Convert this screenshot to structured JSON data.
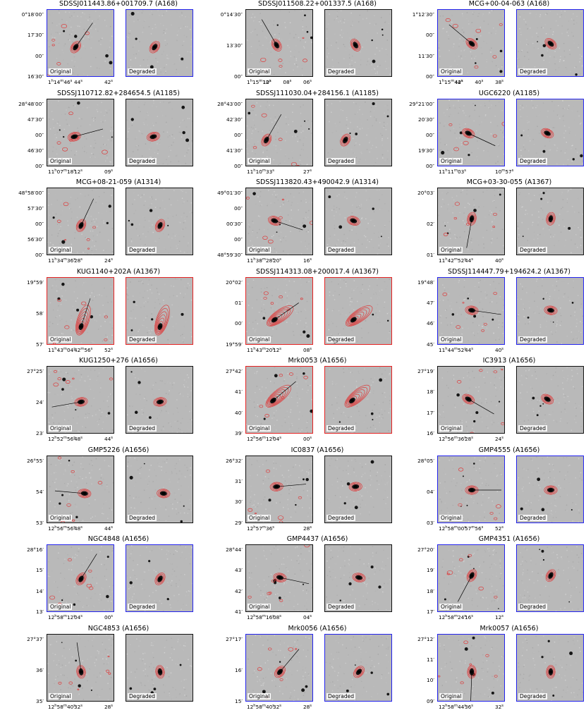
{
  "panel_labels": {
    "original": "Original",
    "degraded": "Degraded"
  },
  "galaxies": [
    {
      "name": "SDSSJ011443.86+001709.7 (A168)",
      "frame": "blue",
      "yticks": [
        "0°18′00″",
        "17′30″",
        "00″",
        "16′30″"
      ],
      "xticks": [
        "1h14m46s",
        "44s",
        "42s"
      ],
      "tail": "ne",
      "angle": -55,
      "ctr": [
        0.42,
        0.55
      ],
      "ox": 1,
      "deg": "same"
    },
    {
      "name": "SDSSJ011508.22+001337.5 (A168)",
      "frame": "black",
      "yticks": [
        "0°14′30″",
        "13′30″",
        "00″"
      ],
      "xticks": [
        "1h15m12s",
        "10s",
        "08s",
        "06s"
      ],
      "tail": "nw",
      "angle": -120,
      "ctr": [
        0.45,
        0.52
      ],
      "ox": 0,
      "deg": "same"
    },
    {
      "name": "MCG+00-04-063 (A168)",
      "frame": "blue",
      "yticks": [
        "1°12′30″",
        "00″",
        "11′30″",
        "00″"
      ],
      "xticks": [
        "1h15m44s",
        "42s",
        "40s",
        "38s"
      ],
      "tail": "nw",
      "angle": -140,
      "ctr": [
        0.5,
        0.5
      ],
      "ox": 2,
      "deg": "same"
    },
    {
      "name": "SDSSJ110712.82+284654.5 (A1185)",
      "frame": "black",
      "yticks": [
        "28°48′00″",
        "47′30″",
        "00″",
        "46′30″",
        "00″"
      ],
      "xticks": [
        "11h07m18s",
        "12s",
        "09s"
      ],
      "tail": "e",
      "angle": -15,
      "ctr": [
        0.4,
        0.55
      ],
      "ox": 0,
      "deg": "same"
    },
    {
      "name": "SDSSJ111030.04+284156.1 (A1185)",
      "frame": "black",
      "yticks": [
        "28°43′00″",
        "42′30″",
        "00″",
        "41′30″",
        "00″"
      ],
      "xticks": [
        "11h10m33s",
        "27s"
      ],
      "tail": "ne",
      "angle": -60,
      "ctr": [
        0.3,
        0.6
      ],
      "ox": 1,
      "deg": "same"
    },
    {
      "name": "UGC6220 (A1185)",
      "frame": "blue",
      "yticks": [
        "29°21′00″",
        "20′30″",
        "00″",
        "19′30″",
        "00″"
      ],
      "xticks": [
        "11h11m03s",
        "10m57s"
      ],
      "tail": "se",
      "angle": 25,
      "ctr": [
        0.45,
        0.5
      ],
      "ox": 2,
      "deg": "same"
    },
    {
      "name": "MCG+08-21-059 (A1314)",
      "frame": "black",
      "yticks": [
        "48°58′00″",
        "57′30″",
        "00″",
        "56′30″",
        "00″"
      ],
      "xticks": [
        "11h34m36s",
        "28s",
        "24s"
      ],
      "tail": "ne",
      "angle": -65,
      "ctr": [
        0.5,
        0.55
      ],
      "ox": 0,
      "deg": "same"
    },
    {
      "name": "SDSSJ113820.43+490042.9 (A1314)",
      "frame": "black",
      "yticks": [
        "49°01′30″",
        "00″",
        "00′30″",
        "00″",
        "48°59′30″"
      ],
      "xticks": [
        "11h38m28s",
        "20s",
        "16s"
      ],
      "tail": "se",
      "angle": 18,
      "ctr": [
        0.42,
        0.48
      ],
      "ox": 1,
      "deg": "same"
    },
    {
      "name": "MCG+03-30-055 (A1367)",
      "frame": "black",
      "yticks": [
        "20°03′",
        "02′",
        "01′"
      ],
      "xticks": [
        "11h42m52s",
        "44s",
        "40s"
      ],
      "tail": "s",
      "angle": 100,
      "ctr": [
        0.5,
        0.45
      ],
      "ox": 2,
      "deg": "same"
    },
    {
      "name": "KUG1140+202A (A1367)",
      "frame": "red",
      "yticks": [
        "19°59′",
        "58′",
        "57′"
      ],
      "xticks": [
        "11h43m04s",
        "42m56s",
        "52s"
      ],
      "tail": "ne",
      "angle": -72,
      "ctr": [
        0.5,
        0.72
      ],
      "ox": 0,
      "deg": "long"
    },
    {
      "name": "SDSSJ114313.08+200017.4 (A1367)",
      "frame": "red",
      "yticks": [
        "20°02′",
        "01′",
        "00′",
        "19°59′"
      ],
      "xticks": [
        "11h43m20s",
        "12s",
        "08s"
      ],
      "tail": "ne",
      "angle": -35,
      "ctr": [
        0.42,
        0.62
      ],
      "ox": 1,
      "deg": "long"
    },
    {
      "name": "SDSSJ114447.79+194624.2 (A1367)",
      "frame": "blue",
      "yticks": [
        "19°48′",
        "47′",
        "46′",
        "45′"
      ],
      "xticks": [
        "11h44m52s",
        "44s",
        "40s"
      ],
      "tail": "e",
      "angle": 8,
      "ctr": [
        0.5,
        0.48
      ],
      "ox": 2,
      "deg": "same"
    },
    {
      "name": "KUG1250+276 (A1656)",
      "frame": "black",
      "yticks": [
        "27°25′",
        "24′",
        "23′"
      ],
      "xticks": [
        "12h52m56s",
        "48s",
        "44s"
      ],
      "tail": "w",
      "angle": -190,
      "ctr": [
        0.5,
        0.52
      ],
      "ox": 0,
      "deg": "same"
    },
    {
      "name": "Mrk0053 (A1656)",
      "frame": "red",
      "yticks": [
        "27°42′",
        "41′",
        "40′",
        "39′"
      ],
      "xticks": [
        "12h56m12s",
        "04s",
        "00s"
      ],
      "tail": "ne",
      "angle": -40,
      "ctr": [
        0.4,
        0.5
      ],
      "ox": 1,
      "deg": "long"
    },
    {
      "name": "IC3913 (A1656)",
      "frame": "black",
      "yticks": [
        "27°19′",
        "18′",
        "17′",
        "16′"
      ],
      "xticks": [
        "12h56m36s",
        "28s",
        "24s"
      ],
      "tail": "se",
      "angle": 30,
      "ctr": [
        0.45,
        0.48
      ],
      "ox": 2,
      "deg": "same"
    },
    {
      "name": "GMP5226 (A1656)",
      "frame": "black",
      "yticks": [
        "26°55′",
        "54′",
        "53′"
      ],
      "xticks": [
        "12h56m56s",
        "48s",
        "44s"
      ],
      "tail": "w",
      "angle": -175,
      "ctr": [
        0.55,
        0.55
      ],
      "ox": 0,
      "deg": "same"
    },
    {
      "name": "IC0837 (A1656)",
      "frame": "black",
      "yticks": [
        "26°32′",
        "31′",
        "30′",
        "29′"
      ],
      "xticks": [
        "12h57m36s",
        "28s"
      ],
      "tail": "e",
      "angle": -5,
      "ctr": [
        0.45,
        0.45
      ],
      "ox": 1,
      "deg": "same"
    },
    {
      "name": "GMP4555 (A1656)",
      "frame": "blue",
      "yticks": [
        "28°05′",
        "04′",
        "03′"
      ],
      "xticks": [
        "12h58m00s",
        "57m56s",
        "52s"
      ],
      "tail": "e",
      "angle": 0,
      "ctr": [
        0.5,
        0.5
      ],
      "ox": 2,
      "deg": "same"
    },
    {
      "name": "NGC4848 (A1656)",
      "frame": "blue",
      "yticks": [
        "28°16′",
        "15′",
        "14′",
        "13′"
      ],
      "xticks": [
        "12h58m12s",
        "04s",
        "00s"
      ],
      "tail": "ne",
      "angle": -58,
      "ctr": [
        0.5,
        0.5
      ],
      "ox": 0,
      "deg": "same"
    },
    {
      "name": "GMP4437 (A1656)",
      "frame": "black",
      "yticks": [
        "28°44′",
        "43′",
        "42′",
        "41′"
      ],
      "xticks": [
        "12h58m16s",
        "08s",
        "04s"
      ],
      "tail": "e",
      "angle": 12,
      "ctr": [
        0.5,
        0.48
      ],
      "ox": 1,
      "deg": "same"
    },
    {
      "name": "GMP4351 (A1656)",
      "frame": "blue",
      "yticks": [
        "27°20′",
        "19′",
        "18′",
        "17′"
      ],
      "xticks": [
        "12h58m24s",
        "16s",
        "12s"
      ],
      "tail": "sw",
      "angle": 118,
      "ctr": [
        0.5,
        0.45
      ],
      "ox": 2,
      "deg": "same"
    },
    {
      "name": "NGC4853 (A1656)",
      "frame": "black",
      "yticks": [
        "27°37′",
        "36′",
        "35′"
      ],
      "xticks": [
        "12h58m40s",
        "32s",
        "28s"
      ],
      "tail": "n",
      "angle": -98,
      "ctr": [
        0.5,
        0.55
      ],
      "ox": 0,
      "deg": "same"
    },
    {
      "name": "Mrk0056 (A1656)",
      "frame": "blue",
      "yticks": [
        "27°17′",
        "16′",
        "15′"
      ],
      "xticks": [
        "12h58m40s",
        "32s",
        "28s"
      ],
      "tail": "ne",
      "angle": -50,
      "ctr": [
        0.5,
        0.55
      ],
      "ox": 1,
      "deg": "same"
    },
    {
      "name": "Mrk0057 (A1656)",
      "frame": "blue",
      "yticks": [
        "27°12′",
        "11′",
        "10′",
        "09′"
      ],
      "xticks": [
        "12h58m44s",
        "36s",
        "32s"
      ],
      "tail": "s",
      "angle": 92,
      "ctr": [
        0.5,
        0.55
      ],
      "ox": 2,
      "deg": "same"
    }
  ],
  "colors": {
    "blue_frame": "#2222ee",
    "red_frame": "#e52222",
    "black_frame": "#111111",
    "contour": "#e03030",
    "sky": "#b9b9b9"
  }
}
